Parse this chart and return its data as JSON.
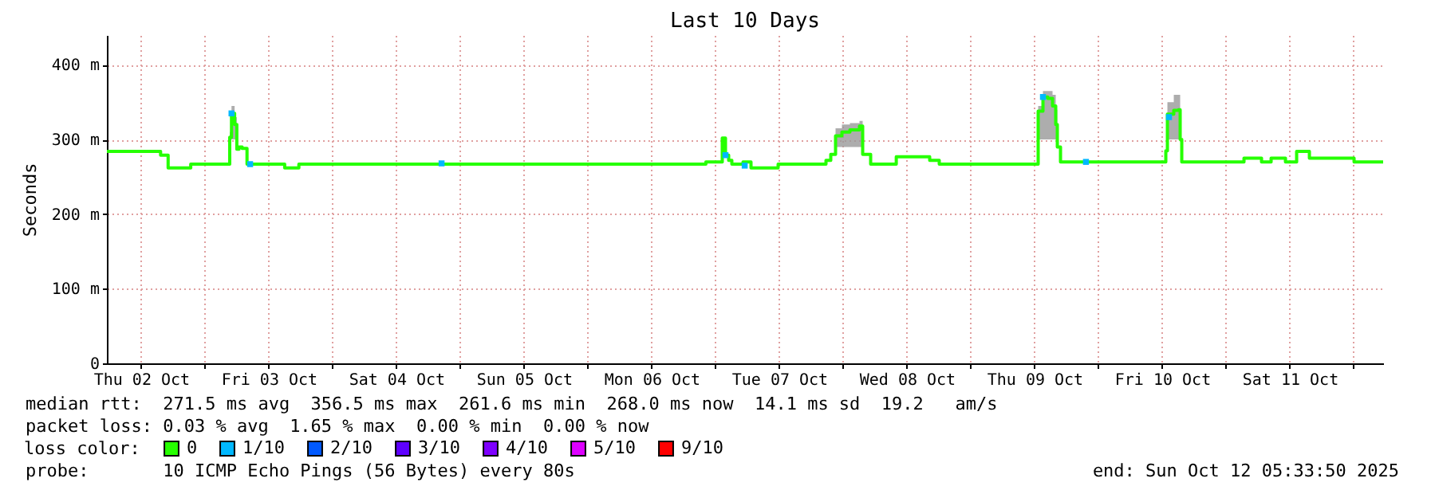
{
  "chart_data": {
    "type": "step",
    "title": "Last 10 Days",
    "ylabel": "Seconds",
    "legend_title": "loss color:",
    "legend": "bottom",
    "grid": true,
    "xlim": [
      "2025-10-02T05:34",
      "2025-10-12T05:33"
    ],
    "xticks": [
      {
        "value": "2025-10-03T00:00",
        "label": null
      },
      {
        "value": "2025-10-04T00:00",
        "label": null
      },
      {
        "value": "2025-10-05T00:00",
        "label": null
      },
      {
        "value": "2025-10-06T00:00",
        "label": null
      },
      {
        "value": "2025-10-07T00:00",
        "label": null
      },
      {
        "value": "2025-10-08T00:00",
        "label": null
      },
      {
        "value": "2025-10-09T00:00",
        "label": null
      },
      {
        "value": "2025-10-10T00:00",
        "label": null
      },
      {
        "value": "2025-10-11T00:00",
        "label": null
      },
      {
        "value": "2025-10-12T00:00",
        "label": null
      },
      {
        "value": "2025-10-02T12:00",
        "label": "Thu 02 Oct"
      },
      {
        "value": "2025-10-03T12:00",
        "label": "Fri 03 Oct"
      },
      {
        "value": "2025-10-04T12:00",
        "label": "Sat 04 Oct"
      },
      {
        "value": "2025-10-05T12:00",
        "label": "Sun 05 Oct"
      },
      {
        "value": "2025-10-06T12:00",
        "label": "Mon 06 Oct"
      },
      {
        "value": "2025-10-07T12:00",
        "label": "Tue 07 Oct"
      },
      {
        "value": "2025-10-08T12:00",
        "label": "Wed 08 Oct"
      },
      {
        "value": "2025-10-09T12:00",
        "label": "Thu 09 Oct"
      },
      {
        "value": "2025-10-10T12:00",
        "label": "Fri 10 Oct"
      },
      {
        "value": "2025-10-11T12:00",
        "label": "Sat 11 Oct"
      }
    ],
    "ylim": [
      0,
      440
    ],
    "yticks": [
      0,
      {
        "value": 100,
        "label": "100 m"
      },
      {
        "value": 200,
        "label": "200 m"
      },
      {
        "value": 300,
        "label": "300 m"
      },
      {
        "value": 400,
        "label": "400 m"
      }
    ],
    "series": [
      {
        "name": "0",
        "color": "#26ff00",
        "x": [
          "2025-10-02T05:34",
          "2025-10-02T15:40",
          "2025-10-02T17:05",
          "2025-10-02T21:20",
          "2025-10-03T04:40",
          "2025-10-03T05:00",
          "2025-10-03T05:35",
          "2025-10-03T06:00",
          "2025-10-03T06:25",
          "2025-10-03T07:00",
          "2025-10-03T07:55",
          "2025-10-03T15:00",
          "2025-10-03T17:40",
          "2025-10-06T22:12",
          "2025-10-07T01:17",
          "2025-10-07T01:53",
          "2025-10-07T02:29",
          "2025-10-07T03:05",
          "2025-10-07T05:11",
          "2025-10-07T06:41",
          "2025-10-07T11:47",
          "2025-10-07T20:47",
          "2025-10-07T21:41",
          "2025-10-07T22:35",
          "2025-10-07T23:47",
          "2025-10-08T01:17",
          "2025-10-08T03:05",
          "2025-10-08T03:41",
          "2025-10-08T05:11",
          "2025-10-08T10:00",
          "2025-10-08T16:17",
          "2025-10-08T18:05",
          "2025-10-09T12:41",
          "2025-10-09T13:35",
          "2025-10-09T14:29",
          "2025-10-09T15:23",
          "2025-10-09T15:59",
          "2025-10-09T16:17",
          "2025-10-09T16:53",
          "2025-10-10T12:41",
          "2025-10-10T12:59",
          "2025-10-10T14:11",
          "2025-10-10T15:05",
          "2025-10-10T15:23",
          "2025-10-10T15:41",
          "2025-10-11T03:23",
          "2025-10-11T06:41",
          "2025-10-11T08:29",
          "2025-10-11T11:11",
          "2025-10-11T13:17",
          "2025-10-11T15:41",
          "2025-10-12T00:05",
          "2025-10-12T05:33"
        ],
        "values": [
          284,
          279,
          262,
          267,
          303,
          335,
          320,
          287,
          290,
          288,
          267,
          262,
          267,
          270,
          302,
          279,
          272,
          267,
          270,
          262,
          267,
          272,
          280,
          305,
          310,
          313,
          318,
          280,
          267,
          277,
          272,
          267,
          338,
          357,
          355,
          345,
          320,
          290,
          270,
          285,
          334,
          339,
          340,
          300,
          270,
          275,
          270,
          275,
          270,
          284,
          275,
          270,
          270
        ],
        "lower": [
          284,
          279,
          262,
          267,
          300,
          300,
          300,
          287,
          290,
          288,
          267,
          262,
          267,
          270,
          302,
          279,
          272,
          267,
          270,
          262,
          267,
          272,
          280,
          290,
          290,
          290,
          290,
          280,
          267,
          277,
          272,
          267,
          300,
          300,
          300,
          300,
          300,
          290,
          270,
          285,
          300,
          300,
          300,
          300,
          270,
          275,
          270,
          275,
          270,
          284,
          275,
          270,
          270
        ],
        "upper": [
          284,
          279,
          262,
          267,
          310,
          345,
          330,
          287,
          290,
          288,
          267,
          262,
          267,
          270,
          302,
          279,
          272,
          267,
          270,
          262,
          267,
          272,
          280,
          315,
          320,
          322,
          325,
          280,
          267,
          277,
          272,
          267,
          345,
          365,
          365,
          360,
          340,
          290,
          270,
          285,
          350,
          360,
          360,
          300,
          270,
          275,
          270,
          275,
          270,
          284,
          275,
          270,
          270
        ]
      },
      {
        "name": "1/10",
        "type": "scatter",
        "marker": "square",
        "color": "#00b8ff",
        "x": [
          "2025-10-03T05:00",
          "2025-10-03T08:30",
          "2025-10-04T20:30",
          "2025-10-07T01:53",
          "2025-10-07T05:30",
          "2025-10-09T13:35",
          "2025-10-09T21:40",
          "2025-10-10T13:17"
        ],
        "values": [
          335,
          267,
          268,
          279,
          265,
          357,
          270,
          330
        ]
      },
      {
        "name": "2/10",
        "type": "scatter",
        "marker": "square",
        "color": "#0059ff"
      },
      {
        "name": "3/10",
        "type": "scatter",
        "marker": "square",
        "color": "#5e00ff"
      },
      {
        "name": "4/10",
        "type": "scatter",
        "marker": "square",
        "color": "#7e00ff"
      },
      {
        "name": "5/10",
        "type": "scatter",
        "marker": "square",
        "color": "#dd00ff"
      },
      {
        "name": "9/10",
        "type": "scatter",
        "marker": "square",
        "color": "#ff0000"
      }
    ],
    "annotations": [
      "median rtt:  271.5 ms avg  356.5 ms max  261.6 ms min  268.0 ms now  14.1 ms sd  19.2   am/s",
      "packet loss: 0.03 % avg  1.65 % max  0.00 % min  0.00 % now",
      "probe:       10 ICMP Echo Pings (56 Bytes) every 80s",
      "end: Sun Oct 12 05:33:50 2025"
    ]
  }
}
